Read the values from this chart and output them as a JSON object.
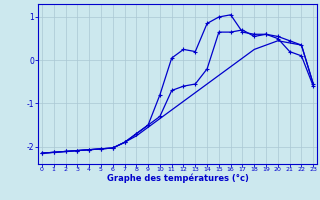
{
  "xlabel": "Graphe des températures (°c)",
  "background_color": "#cce8ee",
  "grid_color": "#aac8d4",
  "line_color": "#0000cc",
  "x_ticks": [
    0,
    1,
    2,
    3,
    4,
    5,
    6,
    7,
    8,
    9,
    10,
    11,
    12,
    13,
    14,
    15,
    16,
    17,
    18,
    19,
    20,
    21,
    22,
    23
  ],
  "y_ticks": [
    -2,
    -1,
    0,
    1
  ],
  "ylim": [
    -2.4,
    1.3
  ],
  "xlim": [
    -0.3,
    23.3
  ],
  "series1_x": [
    0,
    1,
    2,
    3,
    4,
    5,
    6,
    7,
    8,
    9,
    10,
    11,
    12,
    13,
    14,
    15,
    16,
    17,
    18,
    19,
    20,
    21,
    22,
    23
  ],
  "series1_y": [
    -2.15,
    -2.13,
    -2.11,
    -2.09,
    -2.07,
    -2.05,
    -2.03,
    -1.9,
    -1.75,
    -1.55,
    -1.35,
    -1.15,
    -0.95,
    -0.75,
    -0.55,
    -0.35,
    -0.15,
    0.05,
    0.25,
    0.35,
    0.45,
    0.4,
    0.35,
    -0.55
  ],
  "series2_x": [
    0,
    1,
    2,
    3,
    4,
    5,
    6,
    7,
    8,
    9,
    10,
    11,
    12,
    13,
    14,
    15,
    16,
    17,
    18,
    19,
    20,
    21,
    22,
    23
  ],
  "series2_y": [
    -2.15,
    -2.13,
    -2.11,
    -2.09,
    -2.07,
    -2.05,
    -2.03,
    -1.9,
    -1.7,
    -1.5,
    -1.3,
    -0.7,
    -0.6,
    -0.55,
    -0.2,
    0.65,
    0.65,
    0.7,
    0.55,
    0.6,
    0.55,
    0.45,
    0.35,
    -0.55
  ],
  "series3_x": [
    0,
    1,
    2,
    3,
    4,
    5,
    6,
    7,
    8,
    9,
    10,
    11,
    12,
    13,
    14,
    15,
    16,
    17,
    18,
    19,
    20,
    21,
    22,
    23
  ],
  "series3_y": [
    -2.15,
    -2.13,
    -2.11,
    -2.09,
    -2.07,
    -2.05,
    -2.03,
    -1.9,
    -1.7,
    -1.5,
    -0.8,
    0.05,
    0.25,
    0.2,
    0.85,
    1.0,
    1.05,
    0.65,
    0.6,
    0.6,
    0.5,
    0.2,
    0.1,
    -0.6
  ]
}
